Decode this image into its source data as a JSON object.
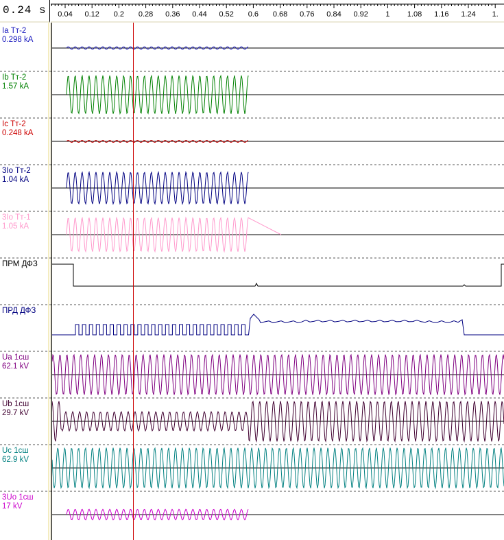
{
  "cursor_time": "0.24 s",
  "time_ticks": [
    "0.04",
    "0.12",
    "0.2",
    "0.28",
    "0.36",
    "0.44",
    "0.52",
    "0.6",
    "0.68",
    "0.76",
    "0.84",
    "0.92",
    "1",
    "1.08",
    "1.16",
    "1.24",
    "1."
  ],
  "channels": [
    {
      "name": "Ia Тт-2",
      "value": "0.298 kA",
      "color": "#2020c0",
      "kind": "current",
      "amp": 0.06,
      "rest": 0.0
    },
    {
      "name": "Ib Тт-2",
      "value": "1.57 kA",
      "color": "#008000",
      "kind": "current",
      "amp": 0.9,
      "rest": 0.0
    },
    {
      "name": "Ic Тт-2",
      "value": "0.248 kA",
      "color": "#cc0000",
      "kind": "current",
      "amp": 0.05,
      "rest": 0.0
    },
    {
      "name": "3Io Тт-2",
      "value": "1.04 kA",
      "color": "#000080",
      "kind": "current",
      "amp": 0.75,
      "rest": 0.0
    },
    {
      "name": "3Io Тт-1",
      "value": "1.05 kA",
      "color": "#ff99cc",
      "kind": "current",
      "amp": 0.8,
      "rest": 0.0
    },
    {
      "name": "ПРМ ДФЗ",
      "value": "",
      "color": "#000000",
      "kind": "prm"
    },
    {
      "name": "ПРД ДФЗ",
      "value": "",
      "color": "#000080",
      "kind": "prd"
    },
    {
      "name": "Ua 1сш",
      "value": "62.1 kV",
      "color": "#800080",
      "kind": "voltage",
      "amp": 0.95,
      "after": 0.95
    },
    {
      "name": "Ub 1сш",
      "value": "29.7 kV",
      "color": "#400030",
      "kind": "voltage",
      "amp": 0.45,
      "after": 0.95
    },
    {
      "name": "Uc 1сш",
      "value": "62.9 kV",
      "color": "#008080",
      "kind": "voltage",
      "amp": 0.95,
      "after": 0.95
    },
    {
      "name": "3Uo 1сш",
      "value": "17 kV",
      "color": "#cc00cc",
      "kind": "zero",
      "amp": 0.25
    }
  ],
  "colors": {
    "cursor": "#cc0000",
    "background": "#ffffff",
    "panel": "#ece9d8"
  }
}
